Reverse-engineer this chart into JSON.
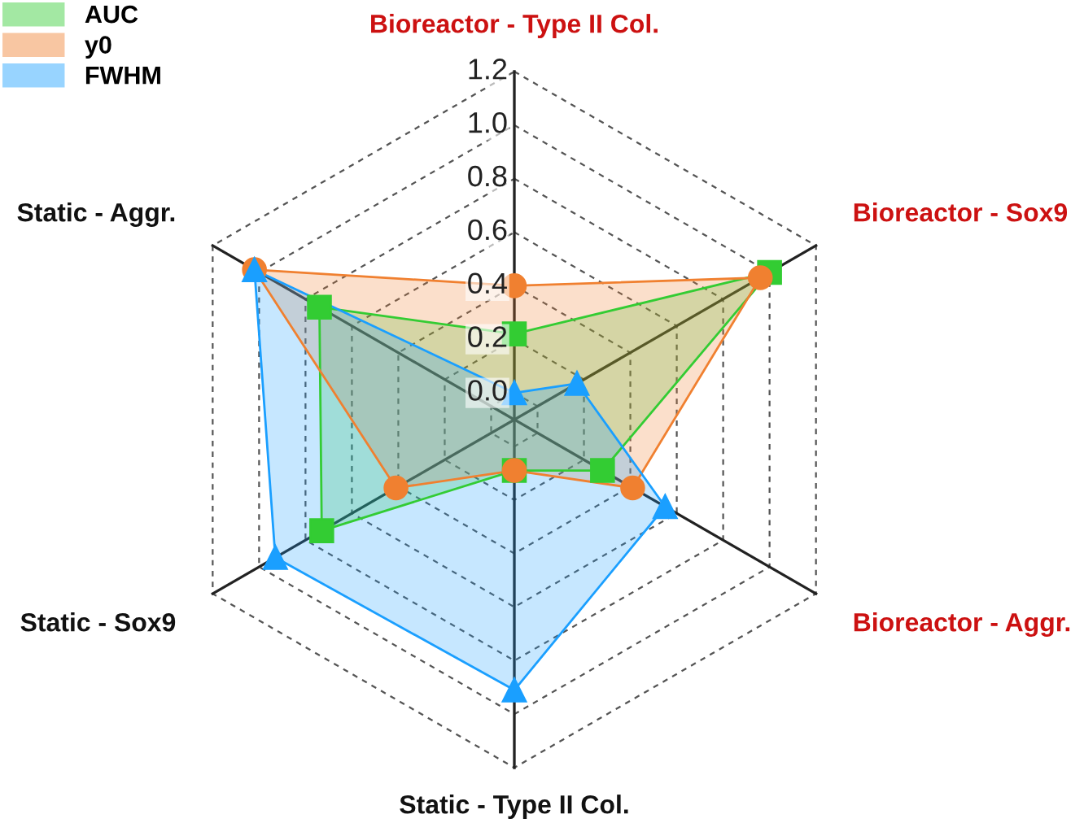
{
  "chart_data": {
    "type": "radar",
    "categories": [
      "Bioreactor - Type II Col.",
      "Bioreactor - Sox9",
      "Bioreactor - Aggr.",
      "Static - Type II Col.",
      "Static - Sox9",
      "Static - Aggr."
    ],
    "series": [
      {
        "name": "AUC",
        "color": "#33cc33",
        "marker": "square",
        "values": [
          0.22,
          1.0,
          0.28,
          0.09,
          0.73,
          0.74
        ]
      },
      {
        "name": "y0",
        "color": "#f08030",
        "marker": "circle",
        "values": [
          0.4,
          0.96,
          0.41,
          0.09,
          0.41,
          1.02
        ]
      },
      {
        "name": "FWHM",
        "color": "#1a9fff",
        "marker": "triangle",
        "values": [
          0.0,
          0.17,
          0.55,
          0.91,
          0.93,
          1.02
        ]
      }
    ],
    "ylim": [
      -0.1,
      1.2
    ],
    "yticks": [
      {
        "value": 0,
        "label": "0.0"
      },
      0.2,
      0.4,
      0.6,
      0.8,
      {
        "value": 1,
        "label": "1.0"
      },
      1.2
    ],
    "grid": true,
    "legend": "top left"
  }
}
